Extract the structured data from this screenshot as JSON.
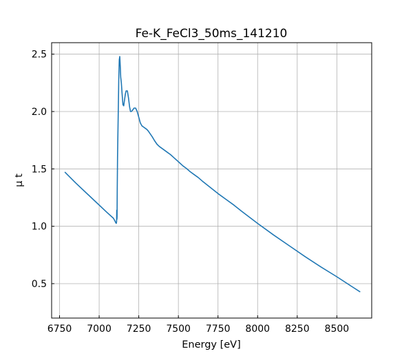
{
  "chart_data": {
    "type": "line",
    "title": "Fe-K_FeCl3_50ms_141210",
    "xlabel": "Energy [eV]",
    "ylabel": "μ t",
    "xlim": [
      6700,
      8720
    ],
    "ylim": [
      0.2,
      2.6
    ],
    "grid": true,
    "x_ticks": [
      6750,
      7000,
      7250,
      7500,
      7750,
      8000,
      8250,
      8500
    ],
    "y_ticks": [
      0.5,
      1.0,
      1.5,
      2.0,
      2.5
    ],
    "x_tick_labels": [
      "6750",
      "7000",
      "7250",
      "7500",
      "7750",
      "8000",
      "8250",
      "8500"
    ],
    "y_tick_labels": [
      "0.5",
      "1.0",
      "1.5",
      "2.0",
      "2.5"
    ],
    "series": [
      {
        "color": "#1f77b4",
        "x": [
          6785,
          6850,
          6950,
          7050,
          7090,
          7100,
          7105,
          7108,
          7110,
          7111,
          7112,
          7113,
          7114,
          7116,
          7120,
          7124,
          7127,
          7130,
          7133,
          7136,
          7140,
          7145,
          7150,
          7155,
          7160,
          7165,
          7170,
          7178,
          7185,
          7192,
          7198,
          7203,
          7210,
          7220,
          7230,
          7240,
          7250,
          7260,
          7270,
          7280,
          7290,
          7300,
          7310,
          7320,
          7335,
          7350,
          7365,
          7380,
          7395,
          7410,
          7430,
          7450,
          7470,
          7490,
          7510,
          7530,
          7550,
          7575,
          7600,
          7625,
          7650,
          7700,
          7750,
          7800,
          7850,
          7900,
          8000,
          8100,
          8200,
          8300,
          8400,
          8500,
          8600,
          8645
        ],
        "y": [
          1.47,
          1.38,
          1.25,
          1.12,
          1.07,
          1.045,
          1.03,
          1.025,
          1.04,
          1.14,
          1.06,
          1.08,
          1.3,
          1.6,
          1.95,
          2.3,
          2.45,
          2.48,
          2.4,
          2.3,
          2.25,
          2.15,
          2.06,
          2.05,
          2.1,
          2.15,
          2.18,
          2.18,
          2.12,
          2.04,
          2.0,
          2.0,
          2.01,
          2.03,
          2.03,
          2.0,
          1.95,
          1.9,
          1.875,
          1.865,
          1.855,
          1.845,
          1.83,
          1.81,
          1.78,
          1.745,
          1.715,
          1.695,
          1.68,
          1.665,
          1.645,
          1.625,
          1.6,
          1.575,
          1.55,
          1.525,
          1.505,
          1.475,
          1.45,
          1.425,
          1.395,
          1.34,
          1.285,
          1.235,
          1.185,
          1.13,
          1.025,
          0.925,
          0.83,
          0.735,
          0.645,
          0.56,
          0.47,
          0.43
        ]
      }
    ]
  }
}
